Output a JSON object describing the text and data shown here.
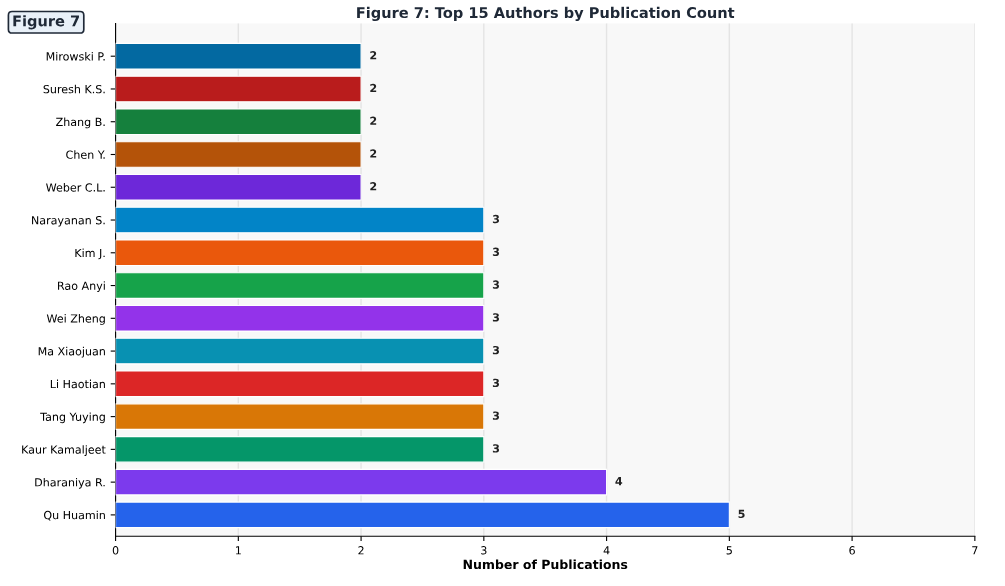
{
  "chart_data": {
    "type": "bar",
    "orientation": "horizontal",
    "title": "Figure 7: Top 15 Authors by Publication Count",
    "xlabel": "Number of Publications",
    "annotations": [
      "Figure 7"
    ],
    "categories": [
      "Mirowski P.",
      "Suresh K.S.",
      "Zhang B.",
      "Chen Y.",
      "Weber C.L.",
      "Narayanan S.",
      "Kim J.",
      "Rao Anyi",
      "Wei Zheng",
      "Ma Xiaojuan",
      "Li Haotian",
      "Tang Yuying",
      "Kaur Kamaljeet",
      "Dharaniya R.",
      "Qu Huamin"
    ],
    "values": [
      2,
      2,
      2,
      2,
      2,
      3,
      3,
      3,
      3,
      3,
      3,
      3,
      3,
      4,
      5
    ],
    "colors": [
      "#0369a1",
      "#b91c1c",
      "#15803d",
      "#b45309",
      "#6d28d9",
      "#0284c7",
      "#ea580c",
      "#16a34a",
      "#9333ea",
      "#0891b2",
      "#dc2626",
      "#d97706",
      "#059669",
      "#7c3aed",
      "#2563eb"
    ],
    "xlim": [
      0,
      7
    ],
    "xticks": [
      0,
      1,
      2,
      3,
      4,
      5,
      6,
      7
    ],
    "grid": "x",
    "data_labels": true
  }
}
